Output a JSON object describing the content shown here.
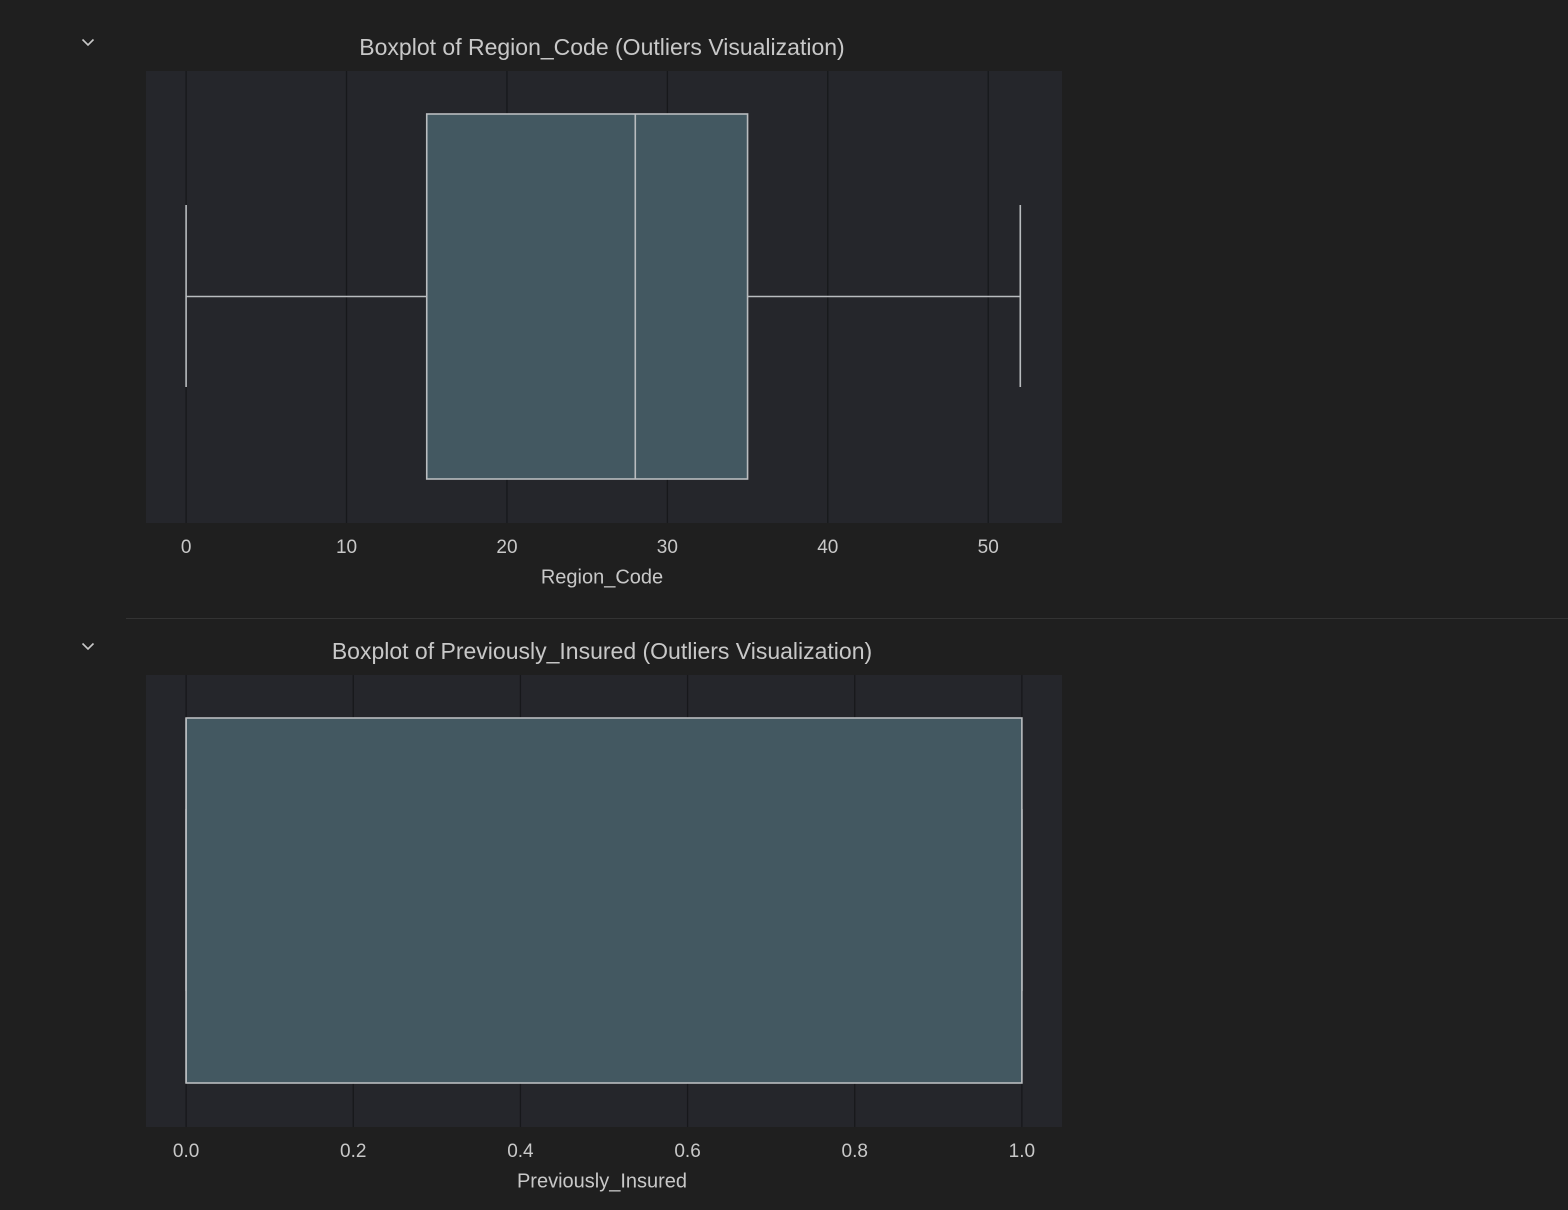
{
  "theme": {
    "page_bg": "#1f1f1f",
    "plot_bg": "#25262b",
    "grid": "#17181b",
    "box_fill": "#435861",
    "box_edge": "#b9bcbf",
    "text": "#c8c8c8",
    "title_text": "#c8c8c8"
  },
  "cells": [
    {
      "toggle_icon": "chevron-down-icon",
      "chart_data": {
        "type": "boxplot",
        "orientation": "horizontal",
        "title": "Boxplot of Region_Code (Outliers Visualization)",
        "xlabel": "Region_Code",
        "ylabel": "",
        "xlim": [
          -2.5,
          54.6
        ],
        "xticks": [
          0,
          10,
          20,
          30,
          40,
          50
        ],
        "tick_labels": [
          "0",
          "10",
          "20",
          "30",
          "40",
          "50"
        ],
        "grid": true,
        "stats": {
          "min": 0,
          "q1": 15,
          "median": 28,
          "q3": 35,
          "max": 52
        },
        "outliers": []
      }
    },
    {
      "toggle_icon": "chevron-down-icon",
      "chart_data": {
        "type": "boxplot",
        "orientation": "horizontal",
        "title": "Boxplot of Previously_Insured (Outliers Visualization)",
        "xlabel": "Previously_Insured",
        "ylabel": "",
        "xlim": [
          -0.048,
          1.048
        ],
        "xticks": [
          0.0,
          0.2,
          0.4,
          0.6,
          0.8,
          1.0
        ],
        "tick_labels": [
          "0.0",
          "0.2",
          "0.4",
          "0.6",
          "0.8",
          "1.0"
        ],
        "grid": true,
        "stats": {
          "min": 0,
          "q1": 0,
          "median": 0,
          "q3": 1,
          "max": 1
        },
        "outliers": []
      }
    }
  ]
}
